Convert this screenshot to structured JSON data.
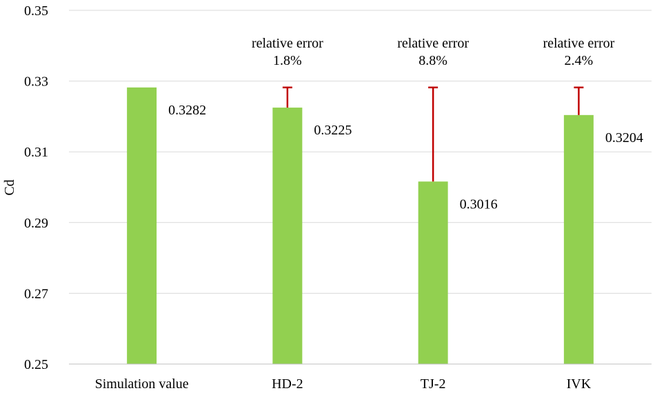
{
  "chart_data": {
    "type": "bar",
    "categories": [
      "Simulation value",
      "HD-2",
      "TJ-2",
      "IVK"
    ],
    "values": [
      0.3282,
      0.3225,
      0.3016,
      0.3204
    ],
    "value_labels": [
      "0.3282",
      "0.3225",
      "0.3016",
      "0.3204"
    ],
    "ylabel": "Cd",
    "xlabel": "",
    "ylim": [
      0.25,
      0.35
    ],
    "yticks": [
      0.25,
      0.27,
      0.29,
      0.31,
      0.33,
      0.35
    ],
    "ytick_labels": [
      "0.25",
      "0.27",
      "0.29",
      "0.31",
      "0.33",
      "0.35"
    ],
    "grid": true,
    "error_bars": [
      {
        "category": "HD-2",
        "from": 0.3225,
        "to": 0.3282
      },
      {
        "category": "TJ-2",
        "from": 0.3016,
        "to": 0.3282
      },
      {
        "category": "IVK",
        "from": 0.3204,
        "to": 0.3282
      }
    ],
    "annotations": [
      {
        "category": "HD-2",
        "line1": "relative error",
        "line2": "1.8%"
      },
      {
        "category": "TJ-2",
        "line1": "relative error",
        "line2": "8.8%"
      },
      {
        "category": "IVK",
        "line1": "relative error",
        "line2": "2.4%"
      }
    ],
    "colors": {
      "bar": "#92d050",
      "error_bar": "#c00000",
      "grid": "#d9d9d9"
    }
  }
}
